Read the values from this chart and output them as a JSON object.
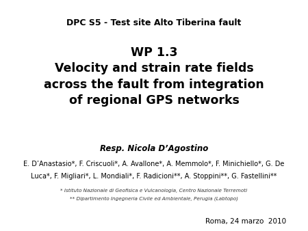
{
  "background_color": "#ffffff",
  "title_line1": "DPC S5 - Test site Alto Tiberina fault",
  "main_title": "WP 1.3\nVelocity and strain rate fields\nacross the fault from integration\nof regional GPS networks",
  "resp_line": "Resp. Nicola D’Agostino",
  "authors_line1": "E. D’Anastasio*, F. Criscuoli*, A. Avallone*, A. Memmolo*, F. Minichiello*, G. De",
  "authors_line2": "Luca*, F. Migliari*, L. Mondiali*, F. Radicioni**, A. Stoppini**, G. Fastellini**",
  "footnote1": "* Istituto Nazionale di Geofisica e Vulcanologia, Centro Nazionale Terremoti",
  "footnote2": "** Dipartimento Ingegneria Civile ed Ambientale, Perugia (Labtopo)",
  "date_line": "Roma, 24 marzo  2010",
  "title_fontsize": 9.0,
  "main_fontsize": 12.5,
  "resp_fontsize": 8.5,
  "authors_fontsize": 7.0,
  "footnote_fontsize": 5.2,
  "date_fontsize": 7.5
}
